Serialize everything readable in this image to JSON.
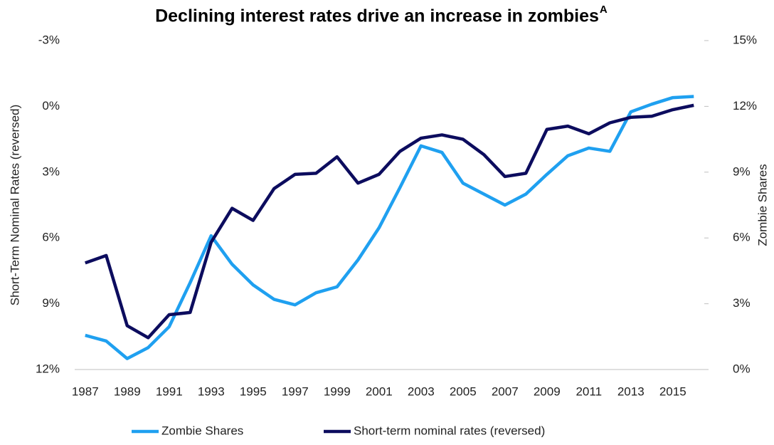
{
  "chart_data": {
    "type": "line",
    "title": "Declining interest rates drive an increase in zombies",
    "title_superscript": "A",
    "y_label": "Short-Term Nominal Rates (reversed)",
    "y2_label": "Zombie Shares",
    "x": [
      1987,
      1988,
      1989,
      1990,
      1991,
      1992,
      1993,
      1994,
      1995,
      1996,
      1997,
      1998,
      1999,
      2000,
      2001,
      2002,
      2003,
      2004,
      2005,
      2006,
      2007,
      2008,
      2009,
      2010,
      2011,
      2012,
      2013,
      2014,
      2015,
      2016
    ],
    "xlim": [
      1986.5,
      2016.5
    ],
    "xticks": [
      1987,
      1989,
      1991,
      1993,
      1995,
      1997,
      1999,
      2001,
      2003,
      2005,
      2007,
      2009,
      2011,
      2013,
      2015
    ],
    "ylim": [
      12,
      -3
    ],
    "yticks": [
      {
        "value": -3,
        "label": "-3%"
      },
      {
        "value": 0,
        "label": "0%"
      },
      {
        "value": 3,
        "label": "3%"
      },
      {
        "value": 6,
        "label": "6%"
      },
      {
        "value": 9,
        "label": "9%"
      },
      {
        "value": 12,
        "label": "12%"
      }
    ],
    "y_reversed": true,
    "y2lim": [
      0,
      15
    ],
    "y2ticks": [
      {
        "value": 0,
        "label": "0%"
      },
      {
        "value": 3,
        "label": "3%"
      },
      {
        "value": 6,
        "label": "6%"
      },
      {
        "value": 9,
        "label": "9%"
      },
      {
        "value": 12,
        "label": "12%"
      },
      {
        "value": 15,
        "label": "15%"
      }
    ],
    "grid": false,
    "legend": "bottom",
    "series": [
      {
        "name": "Zombie Shares",
        "color": "#1fa0f0",
        "axis": "y2",
        "values": [
          1.56,
          1.3,
          0.5,
          1.0,
          1.95,
          3.96,
          6.1,
          4.8,
          3.86,
          3.2,
          2.95,
          3.5,
          3.77,
          5.0,
          6.46,
          8.3,
          10.2,
          9.9,
          8.5,
          8.0,
          7.5,
          8.0,
          8.9,
          9.75,
          10.1,
          9.95,
          11.75,
          12.1,
          12.4,
          12.45
        ]
      },
      {
        "name": "Short-term nominal rates (reversed)",
        "color": "#0c0c5e",
        "axis": "y",
        "values": [
          7.14,
          6.8,
          10.0,
          10.55,
          9.5,
          9.4,
          6.2,
          4.65,
          5.2,
          3.75,
          3.1,
          3.05,
          2.3,
          3.5,
          3.1,
          2.05,
          1.45,
          1.3,
          1.5,
          2.2,
          3.2,
          3.05,
          1.05,
          0.9,
          1.25,
          0.75,
          0.5,
          0.45,
          0.15,
          -0.05
        ]
      }
    ]
  }
}
